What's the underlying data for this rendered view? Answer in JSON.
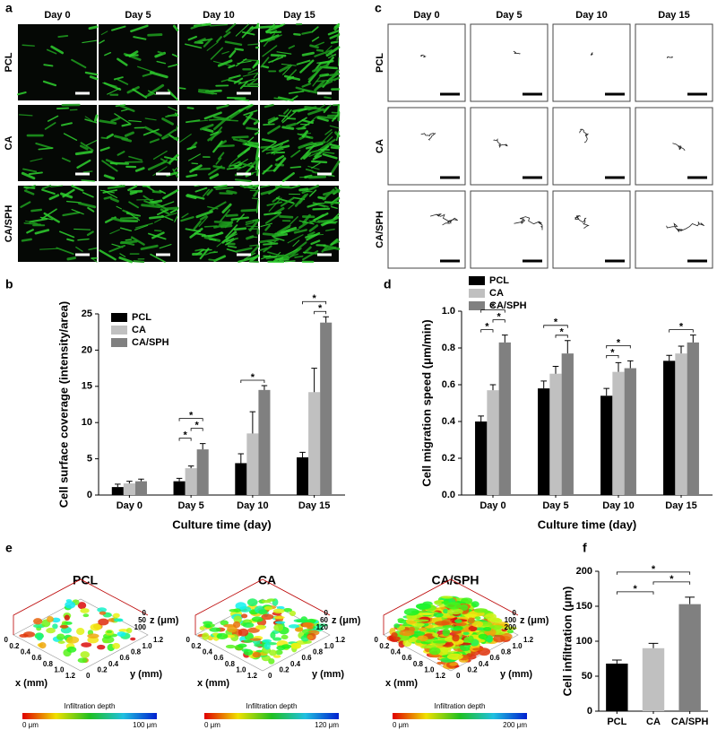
{
  "panel_labels": [
    "a",
    "b",
    "c",
    "d",
    "e",
    "f"
  ],
  "fluorescence": {
    "columns": [
      "Day 0",
      "Day 5",
      "Day 10",
      "Day 15"
    ],
    "rows": [
      "PCL",
      "CA",
      "CA/SPH"
    ]
  },
  "tracks": {
    "columns": [
      "Day 0",
      "Day 5",
      "Day 10",
      "Day 15"
    ],
    "rows": [
      "PCL",
      "CA",
      "CA/SPH"
    ]
  },
  "surfaces": [
    {
      "title": "PCL",
      "x_label": "x (mm)",
      "y_label": "y (mm)",
      "z_label": "z (μm)",
      "xy_ticks": [
        "0",
        "0.2",
        "0.4",
        "0.6",
        "0.8",
        "1.0",
        "1.2"
      ],
      "z_ticks": [
        "0",
        "50",
        "100"
      ],
      "colorbar_title": "Infiltration depth",
      "colorbar_min": "0  μm",
      "colorbar_max": "100  μm"
    },
    {
      "title": "CA",
      "x_label": "x (mm)",
      "y_label": "y (mm)",
      "z_label": "z (μm)",
      "xy_ticks": [
        "0",
        "0.2",
        "0.4",
        "0.6",
        "0.8",
        "1.0",
        "1.2"
      ],
      "z_ticks": [
        "0",
        "60",
        "120"
      ],
      "colorbar_title": "Infiltration depth",
      "colorbar_min": "0  μm",
      "colorbar_max": "120  μm"
    },
    {
      "title": "CA/SPH",
      "x_label": "x (mm)",
      "y_label": "y (mm)",
      "z_label": "z (μm)",
      "xy_ticks": [
        "0",
        "0.2",
        "0.4",
        "0.6",
        "0.8",
        "1.0",
        "1.2"
      ],
      "z_ticks": [
        "0",
        "100",
        "200"
      ],
      "colorbar_title": "Infiltration depth",
      "colorbar_min": "0  μm",
      "colorbar_max": "200  μm"
    }
  ],
  "chart_data": [
    {
      "type": "bar",
      "xlabel": "Culture time (day)",
      "ylabel": "Cell surface coverage (intensity/area)",
      "categories": [
        "Day 0",
        "Day 5",
        "Day 10",
        "Day 15"
      ],
      "series": [
        {
          "name": "PCL",
          "color": "#000000",
          "values": [
            1.1,
            1.9,
            4.4,
            5.2
          ],
          "errors": [
            0.4,
            0.4,
            1.3,
            0.7
          ]
        },
        {
          "name": "CA",
          "color": "#c0c0c0",
          "values": [
            1.6,
            3.7,
            8.5,
            14.2
          ],
          "errors": [
            0.3,
            0.3,
            3.0,
            3.3
          ]
        },
        {
          "name": "CA/SPH",
          "color": "#808080",
          "values": [
            1.9,
            6.3,
            14.5,
            23.8
          ],
          "errors": [
            0.3,
            0.8,
            0.6,
            0.8
          ]
        }
      ],
      "ylim": [
        0,
        25
      ],
      "yticks": [
        0,
        5,
        10,
        15,
        20,
        25
      ],
      "legend": "upper left",
      "significance": [
        {
          "category": "Day 5",
          "between": [
            "PCL",
            "CA"
          ],
          "label": "*"
        },
        {
          "category": "Day 5",
          "between": [
            "CA",
            "CA/SPH"
          ],
          "label": "*"
        },
        {
          "category": "Day 5",
          "between": [
            "PCL",
            "CA/SPH"
          ],
          "label": "*"
        },
        {
          "category": "Day 10",
          "between": [
            "PCL",
            "CA/SPH"
          ],
          "label": "*"
        },
        {
          "category": "Day 15",
          "between": [
            "CA",
            "CA/SPH"
          ],
          "label": "*"
        },
        {
          "category": "Day 15",
          "between": [
            "PCL",
            "CA/SPH"
          ],
          "label": "*"
        }
      ]
    },
    {
      "type": "bar",
      "xlabel": "Culture time (day)",
      "ylabel": "Cell migration speed (μm/min)",
      "categories": [
        "Day 0",
        "Day 5",
        "Day 10",
        "Day 15"
      ],
      "series": [
        {
          "name": "PCL",
          "color": "#000000",
          "values": [
            0.4,
            0.58,
            0.54,
            0.73
          ],
          "errors": [
            0.03,
            0.04,
            0.04,
            0.03
          ]
        },
        {
          "name": "CA",
          "color": "#c0c0c0",
          "values": [
            0.57,
            0.66,
            0.67,
            0.77
          ],
          "errors": [
            0.03,
            0.04,
            0.05,
            0.04
          ]
        },
        {
          "name": "CA/SPH",
          "color": "#808080",
          "values": [
            0.83,
            0.77,
            0.69,
            0.83
          ],
          "errors": [
            0.04,
            0.07,
            0.04,
            0.04
          ]
        }
      ],
      "ylim": [
        0,
        1.0
      ],
      "yticks": [
        {
          "value": 0,
          "label": "0.0"
        },
        0.2,
        0.4,
        0.6,
        0.8,
        {
          "value": 1.0,
          "label": "1.0"
        }
      ],
      "legend": "upper left",
      "significance": [
        {
          "category": "Day 0",
          "between": [
            "PCL",
            "CA"
          ],
          "label": "*"
        },
        {
          "category": "Day 0",
          "between": [
            "CA",
            "CA/SPH"
          ],
          "label": "*"
        },
        {
          "category": "Day 0",
          "between": [
            "PCL",
            "CA/SPH"
          ],
          "label": "*"
        },
        {
          "category": "Day 5",
          "between": [
            "CA",
            "CA/SPH"
          ],
          "label": "*"
        },
        {
          "category": "Day 5",
          "between": [
            "PCL",
            "CA/SPH"
          ],
          "label": "*"
        },
        {
          "category": "Day 10",
          "between": [
            "PCL",
            "CA"
          ],
          "label": "*"
        },
        {
          "category": "Day 10",
          "between": [
            "PCL",
            "CA/SPH"
          ],
          "label": "*"
        },
        {
          "category": "Day 15",
          "between": [
            "PCL",
            "CA/SPH"
          ],
          "label": "*"
        }
      ]
    },
    {
      "type": "bar",
      "ylabel": "Cell infiltration (μm)",
      "categories": [
        "PCL",
        "CA",
        "CA/SPH"
      ],
      "values": [
        68,
        90,
        153
      ],
      "errors": [
        5,
        7,
        10
      ],
      "colors": [
        "#000000",
        "#c0c0c0",
        "#808080"
      ],
      "ylim": [
        0,
        200
      ],
      "yticks": [
        0,
        50,
        100,
        150,
        200
      ],
      "significance": [
        {
          "between": [
            "PCL",
            "CA"
          ],
          "label": "*"
        },
        {
          "between": [
            "CA",
            "CA/SPH"
          ],
          "label": "*"
        },
        {
          "between": [
            "PCL",
            "CA/SPH"
          ],
          "label": "*"
        }
      ]
    }
  ]
}
